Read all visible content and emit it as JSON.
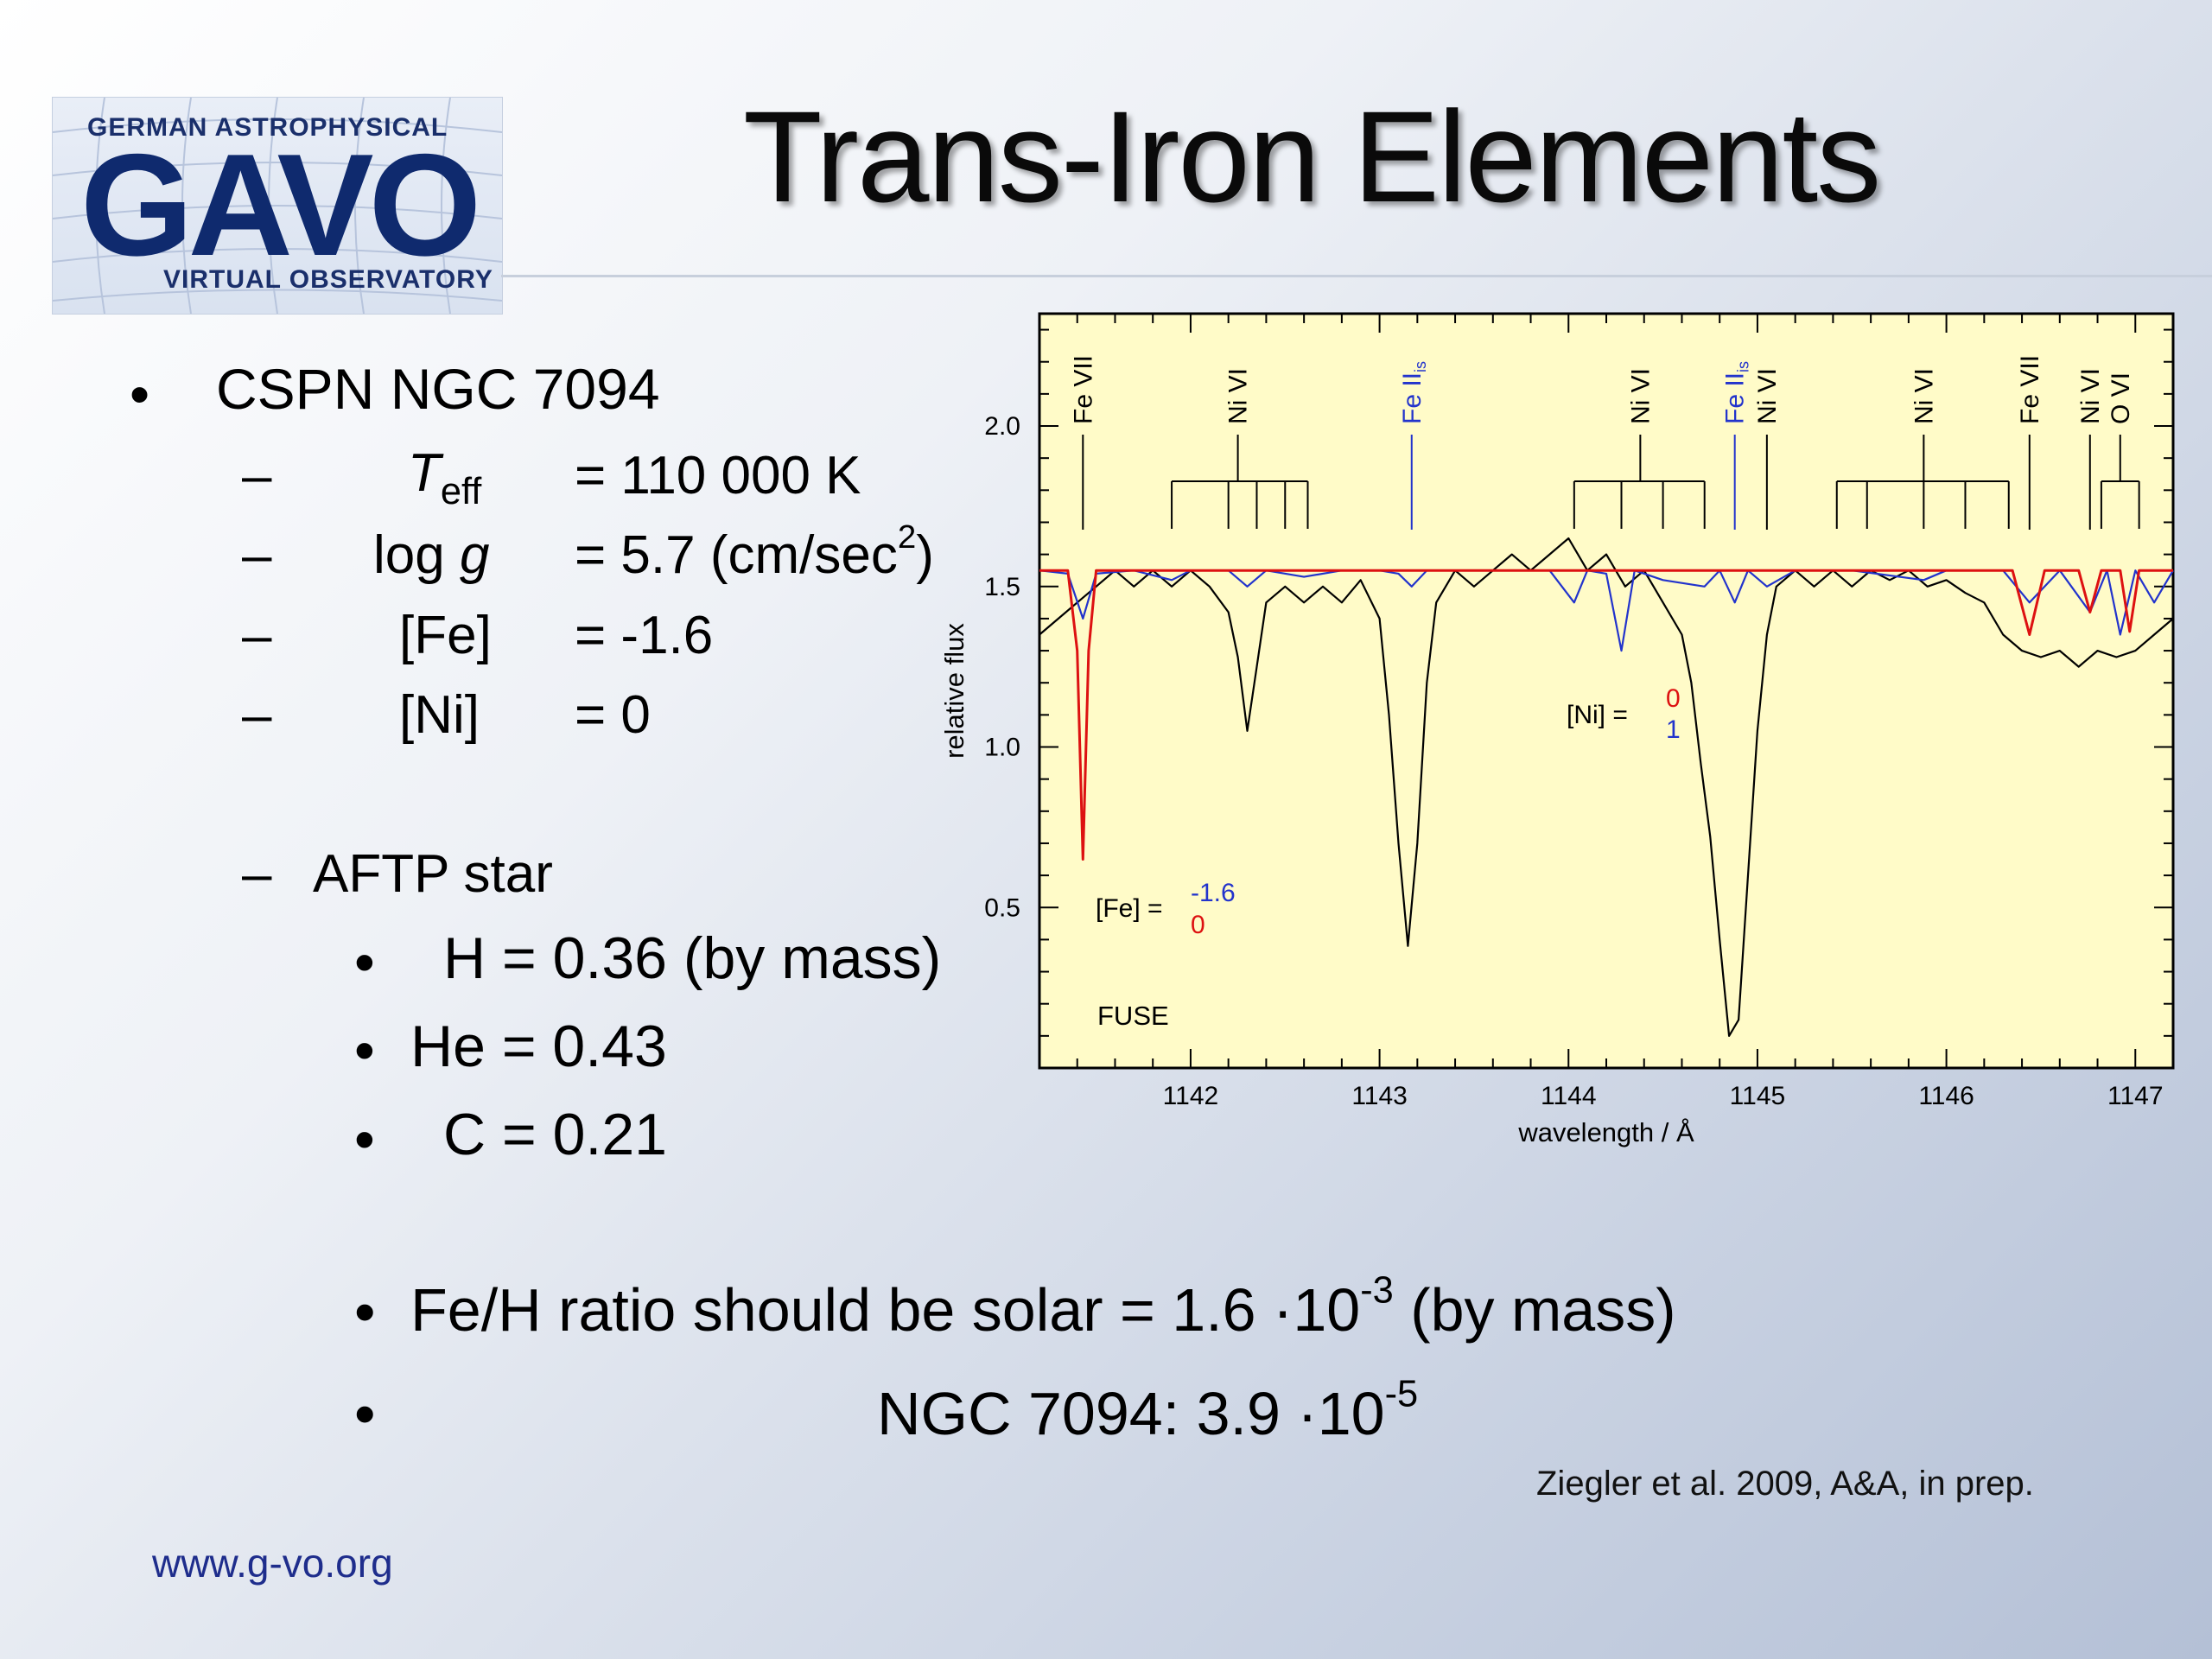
{
  "slide": {
    "title": "Trans-Iron Elements",
    "logo": {
      "top": "GERMAN ASTROPHYSICAL",
      "main": "GAVO",
      "bottom": "VIRTUAL OBSERVATORY"
    },
    "object": "CSPN NGC 7094",
    "params": [
      {
        "dash": "–",
        "name_main": "T",
        "name_sub": "eff",
        "value": "= 110 000 K"
      },
      {
        "dash": "–",
        "name_main": "log ",
        "name_italic": "g",
        "value_pre": "= 5.7 (cm/sec",
        "value_sup": "2",
        "value_post": ")"
      },
      {
        "dash": "–",
        "name": "[Fe]",
        "value": "= -1.6"
      },
      {
        "dash": "–",
        "name": "[Ni]",
        "value": "= 0"
      }
    ],
    "aftp": {
      "dash": "–",
      "label": "AFTP star",
      "items": [
        "H = 0.36 (by mass)",
        "He = 0.43",
        "C = 0.21"
      ]
    },
    "ratio": {
      "bullet": "•",
      "line1_pre": "Fe/H ratio should be solar  =   1.6 ·10",
      "line1_sup": "-3",
      "line1_post": "  (by mass)",
      "line2_pre": "NGC 7094:   3.9 ·10",
      "line2_sup": "-5"
    },
    "citation": "Ziegler et al. 2009, A&A, in prep.",
    "url": "www.g-vo.org"
  },
  "chart_data": {
    "type": "line",
    "xlabel": "wavelength / Å",
    "ylabel": "relative flux",
    "xlim": [
      1141.2,
      1147.2
    ],
    "ylim": [
      0.0,
      2.35
    ],
    "xticks": [
      1142,
      1143,
      1144,
      1145,
      1146,
      1147
    ],
    "yticks": [
      0.5,
      1.0,
      1.5,
      2.0
    ],
    "ytick_labels": [
      "0.5",
      "1.0",
      "1.5",
      "2.0"
    ],
    "background": "#fffbc8",
    "instrument_label": "FUSE",
    "annotations": {
      "fe": {
        "label": "[Fe] =",
        "values": [
          "-1.6",
          "0"
        ],
        "colors": [
          "#2233cc",
          "#dd1111"
        ]
      },
      "ni": {
        "label": "[Ni] =",
        "values": [
          "0",
          "1"
        ],
        "colors": [
          "#dd1111",
          "#2233cc"
        ]
      }
    },
    "line_ids": [
      {
        "label": "Fe VII",
        "x": 1141.43,
        "color": "#000000"
      },
      {
        "label": "Ni VI",
        "x": 1142.25,
        "color": "#000000",
        "group": [
          1141.9,
          1142.2,
          1142.35,
          1142.5,
          1142.62
        ]
      },
      {
        "label": "Fe II",
        "sub": "is",
        "x": 1143.17,
        "color": "#2233cc"
      },
      {
        "label": "Ni VI",
        "x": 1144.38,
        "color": "#000000",
        "group": [
          1144.03,
          1144.28,
          1144.5,
          1144.72
        ]
      },
      {
        "label": "Fe II",
        "sub": "is",
        "x": 1144.88,
        "color": "#2233cc"
      },
      {
        "label": "Ni VI",
        "x": 1145.05,
        "color": "#000000"
      },
      {
        "label": "Ni VI",
        "x": 1145.88,
        "color": "#000000",
        "group": [
          1145.42,
          1145.58,
          1145.88,
          1146.1,
          1146.33
        ]
      },
      {
        "label": "Fe VII",
        "x": 1146.44,
        "color": "#000000"
      },
      {
        "label": "Ni VI",
        "x": 1146.76,
        "color": "#000000"
      },
      {
        "label": "O VI",
        "x": 1146.92,
        "color": "#000000",
        "group": [
          1146.82,
          1147.02
        ]
      }
    ],
    "series": [
      {
        "color": "#000000",
        "x": [
          1141.2,
          1141.3,
          1141.4,
          1141.5,
          1141.6,
          1141.7,
          1141.8,
          1141.9,
          1142.0,
          1142.1,
          1142.2,
          1142.25,
          1142.3,
          1142.35,
          1142.4,
          1142.5,
          1142.6,
          1142.7,
          1142.8,
          1142.9,
          1143.0,
          1143.05,
          1143.1,
          1143.15,
          1143.2,
          1143.25,
          1143.3,
          1143.4,
          1143.5,
          1143.6,
          1143.7,
          1143.8,
          1143.9,
          1144.0,
          1144.1,
          1144.2,
          1144.3,
          1144.4,
          1144.5,
          1144.6,
          1144.65,
          1144.7,
          1144.75,
          1144.8,
          1144.85,
          1144.9,
          1144.95,
          1145.0,
          1145.05,
          1145.1,
          1145.2,
          1145.3,
          1145.4,
          1145.5,
          1145.6,
          1145.7,
          1145.8,
          1145.9,
          1146.0,
          1146.1,
          1146.2,
          1146.3,
          1146.4,
          1146.5,
          1146.6,
          1146.7,
          1146.8,
          1146.9,
          1147.0,
          1147.1,
          1147.2
        ],
        "y": [
          1.35,
          1.4,
          1.45,
          1.5,
          1.55,
          1.5,
          1.55,
          1.5,
          1.55,
          1.5,
          1.42,
          1.28,
          1.05,
          1.25,
          1.45,
          1.5,
          1.45,
          1.5,
          1.45,
          1.52,
          1.4,
          1.1,
          0.7,
          0.38,
          0.7,
          1.2,
          1.45,
          1.55,
          1.5,
          1.55,
          1.6,
          1.55,
          1.6,
          1.65,
          1.55,
          1.6,
          1.5,
          1.55,
          1.45,
          1.35,
          1.2,
          0.95,
          0.72,
          0.4,
          0.1,
          0.15,
          0.6,
          1.05,
          1.35,
          1.5,
          1.55,
          1.5,
          1.55,
          1.5,
          1.55,
          1.52,
          1.55,
          1.5,
          1.52,
          1.48,
          1.45,
          1.35,
          1.3,
          1.28,
          1.3,
          1.25,
          1.3,
          1.28,
          1.3,
          1.35,
          1.4
        ]
      },
      {
        "color": "#2233cc",
        "x": [
          1141.2,
          1141.35,
          1141.43,
          1141.5,
          1141.7,
          1141.9,
          1142.0,
          1142.2,
          1142.3,
          1142.4,
          1142.6,
          1142.8,
          1143.0,
          1143.1,
          1143.17,
          1143.25,
          1143.5,
          1143.9,
          1144.03,
          1144.1,
          1144.2,
          1144.28,
          1144.35,
          1144.5,
          1144.72,
          1144.8,
          1144.88,
          1144.95,
          1145.05,
          1145.2,
          1145.5,
          1145.88,
          1146.0,
          1146.3,
          1146.44,
          1146.6,
          1146.76,
          1146.85,
          1146.92,
          1147.0,
          1147.1,
          1147.2
        ],
        "y": [
          1.55,
          1.54,
          1.4,
          1.54,
          1.55,
          1.52,
          1.55,
          1.55,
          1.5,
          1.55,
          1.53,
          1.55,
          1.55,
          1.54,
          1.5,
          1.55,
          1.55,
          1.55,
          1.45,
          1.55,
          1.54,
          1.3,
          1.55,
          1.52,
          1.5,
          1.55,
          1.45,
          1.55,
          1.5,
          1.55,
          1.55,
          1.52,
          1.55,
          1.55,
          1.45,
          1.55,
          1.42,
          1.55,
          1.35,
          1.55,
          1.45,
          1.55
        ]
      },
      {
        "color": "#dd1111",
        "x": [
          1141.2,
          1141.35,
          1141.4,
          1141.43,
          1141.46,
          1141.5,
          1141.6,
          1142.0,
          1143.0,
          1144.0,
          1145.0,
          1146.0,
          1146.35,
          1146.44,
          1146.52,
          1146.7,
          1146.76,
          1146.82,
          1146.92,
          1146.97,
          1147.02,
          1147.1,
          1147.2
        ],
        "y": [
          1.55,
          1.55,
          1.3,
          0.65,
          1.3,
          1.55,
          1.55,
          1.55,
          1.55,
          1.55,
          1.55,
          1.55,
          1.55,
          1.35,
          1.55,
          1.55,
          1.42,
          1.55,
          1.55,
          1.36,
          1.55,
          1.55,
          1.55
        ]
      }
    ]
  }
}
